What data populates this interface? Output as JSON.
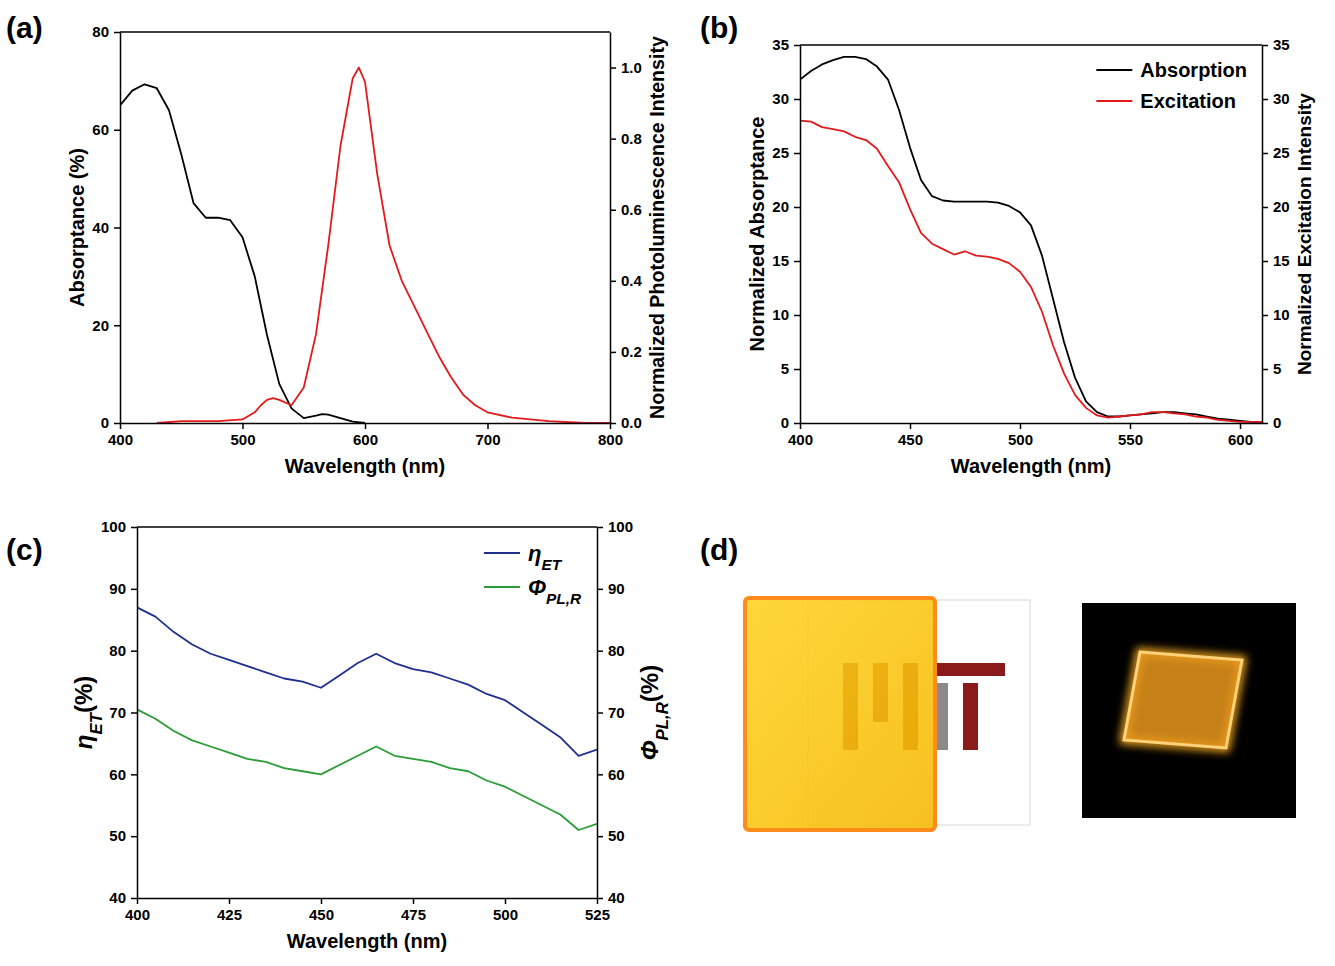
{
  "chart_data": [
    {
      "type": "line",
      "panel_label": "(a)",
      "x_label": "Wavelength (nm)",
      "y_label": "Absorptance (%)",
      "y2_label": "Normalized Photoluminescence Intensity",
      "xlim": [
        400,
        800
      ],
      "xticks": [
        400,
        500,
        600,
        700,
        800
      ],
      "ylim": [
        0,
        80
      ],
      "yticks": [
        0,
        20,
        40,
        60,
        80
      ],
      "y2lim": [
        0,
        1.1
      ],
      "y2ticks": [
        {
          "value": 0,
          "label": "0.0"
        },
        0.2,
        0.4,
        0.6,
        0.8,
        {
          "value": 1,
          "label": "1.0"
        }
      ],
      "series": [
        {
          "color": "#000000",
          "x": [
            400,
            410,
            420,
            430,
            440,
            450,
            460,
            470,
            480,
            490,
            500,
            510,
            520,
            530,
            540,
            550,
            560,
            565,
            570,
            580,
            590,
            600
          ],
          "values": [
            65,
            68,
            69.3,
            68.5,
            64,
            55,
            45,
            42,
            42,
            41.5,
            38,
            30,
            18,
            8,
            3,
            1,
            1.5,
            1.8,
            1.7,
            1,
            0.3,
            0
          ]
        },
        {
          "color": "#e31a1c",
          "axis": "y2",
          "x": [
            430,
            450,
            480,
            500,
            510,
            515,
            520,
            525,
            530,
            540,
            550,
            560,
            570,
            580,
            590,
            595,
            600,
            610,
            620,
            630,
            640,
            650,
            660,
            670,
            680,
            690,
            700,
            720,
            750,
            780,
            800
          ],
          "values": [
            0,
            0.005,
            0.005,
            0.01,
            0.03,
            0.05,
            0.065,
            0.07,
            0.065,
            0.05,
            0.1,
            0.25,
            0.5,
            0.78,
            0.97,
            1,
            0.96,
            0.7,
            0.5,
            0.4,
            0.33,
            0.26,
            0.19,
            0.13,
            0.08,
            0.05,
            0.03,
            0.015,
            0.005,
            0,
            0
          ]
        }
      ]
    },
    {
      "type": "line",
      "panel_label": "(b)",
      "x_label": "Wavelength (nm)",
      "y_label": "Normalized Absorptance",
      "y2_label": "Normalized Excitation Intensity",
      "xlim": [
        400,
        610
      ],
      "xticks": [
        400,
        450,
        500,
        550,
        600
      ],
      "ylim": [
        0,
        35
      ],
      "yticks": [
        0,
        5,
        10,
        15,
        20,
        25,
        30,
        35
      ],
      "y2lim": [
        0,
        35
      ],
      "y2ticks": [
        0,
        5,
        10,
        15,
        20,
        25,
        30,
        35
      ],
      "legend": "upper right",
      "x": [
        400,
        405,
        410,
        415,
        420,
        425,
        430,
        435,
        440,
        445,
        450,
        455,
        460,
        465,
        470,
        475,
        480,
        485,
        490,
        495,
        500,
        505,
        510,
        515,
        520,
        525,
        530,
        535,
        540,
        545,
        550,
        555,
        560,
        565,
        570,
        575,
        580,
        585,
        590,
        595,
        600,
        605,
        610
      ],
      "series": [
        {
          "name": "Absorption",
          "color": "#000000",
          "values": [
            31.8,
            32.6,
            33.2,
            33.6,
            33.9,
            33.9,
            33.7,
            33,
            31.8,
            29,
            25.5,
            22.5,
            21,
            20.6,
            20.5,
            20.5,
            20.5,
            20.5,
            20.4,
            20.1,
            19.5,
            18.3,
            15.5,
            11.5,
            7.5,
            4.2,
            2,
            1,
            0.6,
            0.6,
            0.7,
            0.8,
            0.9,
            1,
            1,
            0.9,
            0.8,
            0.6,
            0.4,
            0.3,
            0.2,
            0.1,
            0.1
          ]
        },
        {
          "name": "Excitation",
          "color": "#e31a1c",
          "axis": "y2",
          "values": [
            28,
            27.9,
            27.4,
            27.2,
            27,
            26.5,
            26.2,
            25.4,
            23.8,
            22.3,
            19.8,
            17.6,
            16.6,
            16.1,
            15.6,
            15.9,
            15.5,
            15.4,
            15.2,
            14.8,
            14,
            12.6,
            10.3,
            7.2,
            4.6,
            2.6,
            1.4,
            0.7,
            0.5,
            0.6,
            0.7,
            0.8,
            1,
            1,
            0.9,
            0.8,
            0.6,
            0.5,
            0.3,
            0.2,
            0.1,
            0.1,
            0.1
          ]
        }
      ]
    },
    {
      "type": "line",
      "panel_label": "(c)",
      "x_label": "Wavelength (nm)",
      "y_label": "ηET(%)",
      "y2_label": "ΦPL,R(%)",
      "xlim": [
        400,
        525
      ],
      "xticks": [
        400,
        425,
        450,
        475,
        500,
        525
      ],
      "ylim": [
        40,
        100
      ],
      "yticks": [
        40,
        50,
        60,
        70,
        80,
        90,
        100
      ],
      "y2lim": [
        40,
        100
      ],
      "y2ticks": [
        40,
        50,
        60,
        70,
        80,
        90,
        100
      ],
      "legend": "upper right",
      "x": [
        400,
        405,
        410,
        415,
        420,
        425,
        430,
        435,
        440,
        445,
        450,
        455,
        460,
        465,
        470,
        475,
        480,
        485,
        490,
        495,
        500,
        505,
        510,
        515,
        520,
        525
      ],
      "series": [
        {
          "name": "ηET",
          "color": "#1f2f8f",
          "values": [
            87,
            85.5,
            83,
            81,
            79.5,
            78.5,
            77.5,
            76.5,
            75.5,
            75,
            74,
            76,
            78,
            79.5,
            78,
            77,
            76.5,
            75.5,
            74.5,
            73,
            72,
            70,
            68,
            66,
            63,
            64
          ]
        },
        {
          "name": "ΦPL,R",
          "color": "#2a9d3a",
          "axis": "y2",
          "values": [
            70.5,
            69,
            67,
            65.5,
            64.5,
            63.5,
            62.5,
            62,
            61,
            60.5,
            60,
            61.5,
            63,
            64.5,
            63,
            62.5,
            62,
            61,
            60.5,
            59,
            58,
            56.5,
            55,
            53.5,
            51,
            52
          ]
        }
      ]
    }
  ],
  "photos": {
    "label": "(d)"
  }
}
